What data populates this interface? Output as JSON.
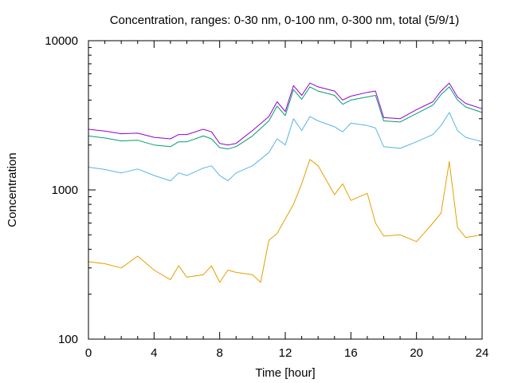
{
  "chart_data": {
    "type": "line",
    "title": "Concentration, ranges: 0-30 nm, 0-100 nm, 0-300 nm, total (5/9/1)",
    "xlabel": "Time [hour]",
    "ylabel": "Concentration",
    "xlim": [
      0,
      24
    ],
    "ylim": [
      100,
      10000
    ],
    "yscale": "log",
    "x_ticks": [
      0,
      4,
      8,
      12,
      16,
      20,
      24
    ],
    "x_tick_labels": [
      "0",
      "4",
      "8",
      "12",
      "16",
      "20",
      "24"
    ],
    "y_ticks": [
      100,
      1000,
      10000
    ],
    "y_tick_labels": [
      "100",
      "1000",
      "10000"
    ],
    "grid": false,
    "legend": "none",
    "series": [
      {
        "color": "#9400d3",
        "x": [
          0,
          1,
          2,
          3,
          4,
          5,
          5.5,
          6,
          7,
          7.5,
          8,
          8.5,
          9,
          10,
          11,
          11.5,
          12,
          12.5,
          13,
          13.5,
          14,
          15,
          15.5,
          16,
          17,
          17.5,
          18,
          19,
          20,
          21,
          21.5,
          22,
          22.5,
          23,
          24
        ],
        "y": [
          2550,
          2480,
          2380,
          2400,
          2250,
          2200,
          2350,
          2350,
          2550,
          2450,
          2050,
          2000,
          2050,
          2500,
          3100,
          3900,
          3350,
          5000,
          4300,
          5200,
          4900,
          4600,
          4000,
          4250,
          4500,
          4600,
          3050,
          3000,
          3450,
          3900,
          4600,
          5200,
          4200,
          3800,
          3500
        ]
      },
      {
        "color": "#009e73",
        "x": [
          0,
          1,
          2,
          3,
          4,
          5,
          5.5,
          6,
          7,
          7.5,
          8,
          8.5,
          9,
          10,
          11,
          11.5,
          12,
          12.5,
          13,
          13.5,
          14,
          15,
          15.5,
          16,
          17,
          17.5,
          18,
          19,
          20,
          21,
          21.5,
          22,
          22.5,
          23,
          24
        ],
        "y": [
          2300,
          2230,
          2130,
          2150,
          2000,
          1950,
          2100,
          2100,
          2300,
          2200,
          1920,
          1880,
          1950,
          2300,
          2900,
          3650,
          3150,
          4700,
          4050,
          4900,
          4600,
          4300,
          3750,
          4000,
          4200,
          4300,
          2900,
          2850,
          3250,
          3700,
          4350,
          4900,
          4000,
          3600,
          3300
        ]
      },
      {
        "color": "#56b4e9",
        "x": [
          0,
          1,
          2,
          3,
          4,
          5,
          5.5,
          6,
          7,
          7.5,
          8,
          8.5,
          9,
          10,
          11,
          11.5,
          12,
          12.5,
          13,
          13.5,
          14,
          15,
          15.5,
          16,
          17,
          17.5,
          18,
          19,
          20,
          21,
          21.5,
          22,
          22.5,
          23,
          24
        ],
        "y": [
          1420,
          1370,
          1300,
          1380,
          1250,
          1150,
          1300,
          1250,
          1400,
          1450,
          1250,
          1150,
          1300,
          1450,
          1780,
          2200,
          2000,
          3000,
          2500,
          3100,
          2900,
          2650,
          2450,
          2800,
          2700,
          2600,
          1950,
          1900,
          2100,
          2350,
          2700,
          3300,
          2500,
          2250,
          2100
        ]
      },
      {
        "color": "#e69f00",
        "x": [
          0,
          1,
          2,
          3,
          4,
          5,
          5.5,
          6,
          7,
          7.5,
          8,
          8.5,
          9,
          10,
          10.5,
          11,
          11.5,
          12,
          12.5,
          13,
          13.5,
          14,
          15,
          15.5,
          16,
          17,
          17.5,
          18,
          19,
          20,
          21,
          21.5,
          22,
          22.5,
          23,
          24
        ],
        "y": [
          330,
          320,
          300,
          360,
          290,
          250,
          310,
          260,
          270,
          310,
          240,
          290,
          280,
          270,
          240,
          460,
          510,
          640,
          800,
          1100,
          1600,
          1450,
          930,
          1100,
          850,
          950,
          600,
          490,
          500,
          450,
          600,
          700,
          1550,
          560,
          480,
          500
        ]
      }
    ]
  }
}
